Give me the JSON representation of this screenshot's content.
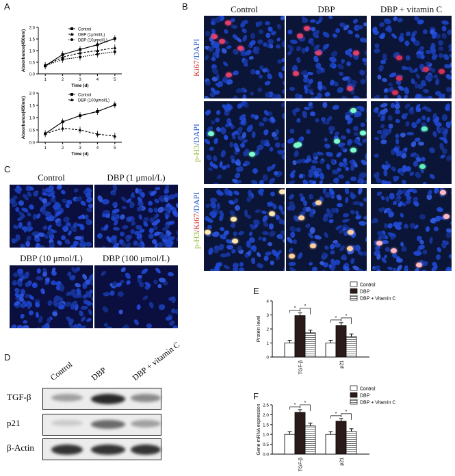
{
  "panels": {
    "A": "A",
    "B": "B",
    "C": "C",
    "D": "D",
    "E": "E",
    "F": "F"
  },
  "panelA": {
    "top": {
      "ylabel": "Absorbance(450nm)",
      "xlabel": "Time (d)",
      "legend": [
        "Control",
        "DBP (1μmol/L)",
        "DBP (10μmol/L)"
      ]
    },
    "bottom": {
      "ylabel": "Absorbance(450nm)",
      "xlabel": "Time (d)",
      "legend": [
        "Control",
        "DBP (100μmol/L)"
      ]
    }
  },
  "panelB": {
    "columns": [
      "Control",
      "DBP",
      "DBP + vitamin C"
    ],
    "rows": [
      {
        "parts": [
          {
            "t": "Ki67",
            "c": "#d0312d"
          },
          {
            "t": "/",
            "c": "#2255cc"
          },
          {
            "t": "DAPI",
            "c": "#2255cc"
          }
        ]
      },
      {
        "parts": [
          {
            "t": "p-H3",
            "c": "#8ab820"
          },
          {
            "t": "/",
            "c": "#2255cc"
          },
          {
            "t": "DAPI",
            "c": "#2255cc"
          }
        ]
      },
      {
        "parts": [
          {
            "t": "p-H3",
            "c": "#8ab820"
          },
          {
            "t": "/",
            "c": "#d0312d"
          },
          {
            "t": "Ki67",
            "c": "#d0312d"
          },
          {
            "t": "/DAPI",
            "c": "#2255cc"
          }
        ]
      }
    ]
  },
  "panelC": {
    "titles": [
      "Control",
      "DBP (1 μmol/L)",
      "DBP (10 μmol/L)",
      "DBP (100 μmol/L)"
    ]
  },
  "panelD": {
    "columns": [
      "Control",
      "DBP",
      "DBP + vitamin C"
    ],
    "rows": [
      "TGF-β",
      "p21",
      "β-Actin"
    ]
  },
  "chart_data": [
    {
      "type": "line",
      "panel": "A-top",
      "x": [
        1,
        2,
        3,
        4,
        5
      ],
      "series": [
        {
          "name": "Control",
          "values": [
            0.35,
            0.83,
            1.05,
            1.25,
            1.52
          ]
        },
        {
          "name": "DBP (1μmol/L)",
          "values": [
            0.35,
            0.72,
            0.9,
            1.0,
            1.12
          ]
        },
        {
          "name": "DBP (10μmol/L)",
          "values": [
            0.35,
            0.62,
            0.72,
            0.85,
            0.95
          ]
        }
      ],
      "xlabel": "Time (d)",
      "ylabel": "Absorbance(450nm)",
      "ylim": [
        0,
        2.0
      ],
      "yticks": [
        0.0,
        0.5,
        1.0,
        1.5,
        2.0
      ],
      "xticks": [
        1,
        2,
        3,
        4,
        5
      ],
      "legend": "top-right"
    },
    {
      "type": "line",
      "panel": "A-bottom",
      "x": [
        1,
        2,
        3,
        4,
        5
      ],
      "series": [
        {
          "name": "Control",
          "values": [
            0.35,
            0.83,
            1.08,
            1.25,
            1.52
          ]
        },
        {
          "name": "DBP (100μmol/L)",
          "values": [
            0.35,
            0.57,
            0.5,
            0.33,
            0.25
          ]
        }
      ],
      "xlabel": "Time (d)",
      "ylabel": "Absorbance(450nm)",
      "ylim": [
        0,
        2.0
      ],
      "yticks": [
        0.0,
        0.5,
        1.0,
        1.5,
        2.0
      ],
      "xticks": [
        1,
        2,
        3,
        4,
        5
      ],
      "legend": "top-right"
    },
    {
      "type": "bar",
      "panel": "E",
      "categories": [
        "TGF-β",
        "p21"
      ],
      "series": [
        {
          "name": "Control",
          "values": [
            1.0,
            1.0
          ]
        },
        {
          "name": "DBP",
          "values": [
            2.95,
            2.25
          ]
        },
        {
          "name": "DBP + Vitamin C",
          "values": [
            1.72,
            1.45
          ]
        }
      ],
      "ylabel": "Protein level",
      "ylim": [
        0,
        4
      ],
      "yticks": [
        0,
        1,
        2,
        3,
        4
      ],
      "sig": "*",
      "legend": "top-right"
    },
    {
      "type": "bar",
      "panel": "F",
      "categories": [
        "TGF-β",
        "p21"
      ],
      "series": [
        {
          "name": "Control",
          "values": [
            1.0,
            1.0
          ]
        },
        {
          "name": "DBP",
          "values": [
            2.12,
            1.67
          ]
        },
        {
          "name": "DBP + Vitamin C",
          "values": [
            1.43,
            1.15
          ]
        }
      ],
      "ylabel": "Gene mRNA expression",
      "ylim": [
        0,
        2.5
      ],
      "yticks": [
        0.0,
        0.5,
        1.0,
        1.5,
        2.0,
        2.5
      ],
      "sig": "*",
      "legend": "top-right"
    }
  ]
}
